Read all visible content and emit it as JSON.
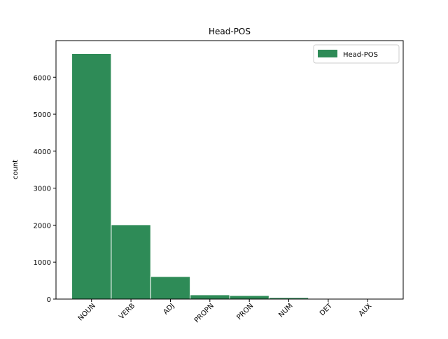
{
  "chart_data": {
    "type": "bar",
    "title": "Head-POS",
    "y_label": "count",
    "categories": [
      "NOUN",
      "VERB",
      "ADJ",
      "PROPN",
      "PRON",
      "NUM",
      "DET",
      "AUX"
    ],
    "series": [
      {
        "name": "Head-POS",
        "color": "#2e8b57",
        "values": [
          6640,
          2010,
          610,
          115,
          95,
          40,
          5,
          3
        ]
      }
    ],
    "ylim": [
      0,
      6990
    ],
    "yticks": [
      0,
      1000,
      2000,
      3000,
      4000,
      5000,
      6000
    ],
    "legend": "upper right"
  }
}
